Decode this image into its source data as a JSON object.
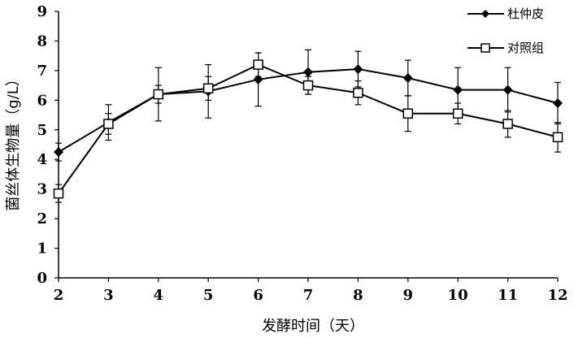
{
  "chart_data": {
    "type": "line",
    "xlabel": "发酵时间（天）",
    "ylabel": "菌丝体生物量（g/L）",
    "x": [
      2,
      3,
      4,
      5,
      6,
      7,
      8,
      9,
      10,
      11,
      12
    ],
    "x_ticks": [
      "2",
      "3",
      "4",
      "5",
      "6",
      "7",
      "8",
      "9",
      "10",
      "11",
      "12"
    ],
    "y_ticks": [
      "0",
      "1",
      "2",
      "3",
      "4",
      "5",
      "6",
      "7",
      "8",
      "9"
    ],
    "xlim": [
      2,
      12
    ],
    "ylim": [
      0,
      9
    ],
    "grid": false,
    "legend_position": "top-right",
    "series": [
      {
        "name": "杜仲皮",
        "marker": "filled-diamond",
        "color": "#000000",
        "values": [
          4.25,
          5.25,
          6.2,
          6.3,
          6.7,
          6.95,
          7.05,
          6.75,
          6.35,
          6.35,
          5.9
        ],
        "errors": [
          0.3,
          0.6,
          0.9,
          0.9,
          0.9,
          0.75,
          0.6,
          0.6,
          0.75,
          0.75,
          0.7
        ]
      },
      {
        "name": "对照组",
        "marker": "open-square",
        "color": "#000000",
        "values": [
          2.85,
          5.2,
          6.2,
          6.4,
          7.2,
          6.5,
          6.25,
          5.55,
          5.55,
          5.2,
          4.75
        ],
        "errors": [
          0.3,
          0.35,
          0.3,
          0.4,
          0.4,
          0.3,
          0.4,
          0.6,
          0.35,
          0.45,
          0.5
        ]
      }
    ]
  }
}
